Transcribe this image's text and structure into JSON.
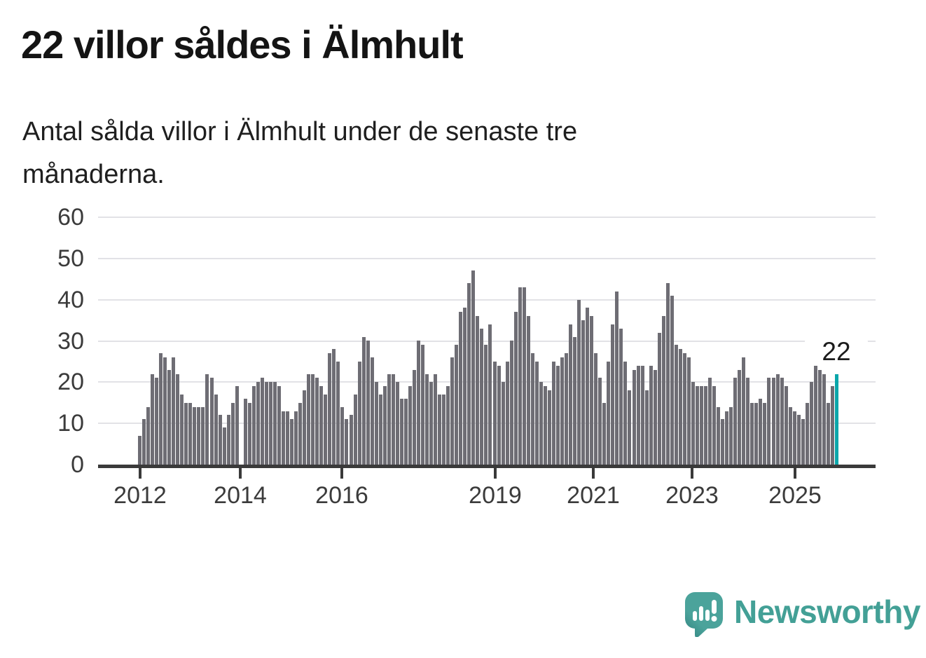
{
  "header": {
    "title": "22 villor såldes i Älmhult",
    "subtitle": "Antal sålda villor i Älmhult under de senaste tre månaderna.",
    "subtitle_lines": [
      "Antal sålda villor i Älmhult under de senaste tre",
      "månaderna."
    ]
  },
  "chart_data": {
    "type": "bar",
    "title": "22 villor såldes i Älmhult",
    "subtitle": "Antal sålda villor i Älmhult under de senaste tre månaderna.",
    "ylabel": "",
    "xlabel": "",
    "ylim": [
      0,
      60
    ],
    "y_ticks": [
      0,
      10,
      20,
      30,
      40,
      50,
      60
    ],
    "grid": true,
    "x_tick_labels": [
      "2012",
      "2014",
      "2016",
      "2019",
      "2021",
      "2023",
      "2025"
    ],
    "tick_month_indices": [
      0,
      24,
      48,
      84,
      108,
      132,
      156
    ],
    "start_month": "2012-01",
    "end_month": "2025-10",
    "frequency": "monthly (rolling 3-month totals)",
    "values": [
      7,
      11,
      14,
      22,
      21,
      27,
      26,
      23,
      26,
      22,
      17,
      15,
      15,
      14,
      14,
      14,
      22,
      21,
      17,
      12,
      9,
      12,
      15,
      19,
      0,
      16,
      15,
      19,
      20,
      21,
      20,
      20,
      20,
      19,
      13,
      13,
      11,
      13,
      15,
      18,
      22,
      22,
      21,
      19,
      17,
      27,
      28,
      25,
      14,
      11,
      12,
      17,
      25,
      31,
      30,
      26,
      20,
      17,
      19,
      22,
      22,
      20,
      16,
      16,
      19,
      23,
      30,
      29,
      22,
      20,
      22,
      17,
      17,
      19,
      26,
      29,
      37,
      38,
      44,
      47,
      36,
      33,
      29,
      34,
      25,
      24,
      20,
      25,
      30,
      37,
      43,
      43,
      36,
      27,
      25,
      20,
      19,
      18,
      25,
      24,
      26,
      27,
      34,
      31,
      40,
      35,
      38,
      36,
      27,
      21,
      15,
      25,
      34,
      42,
      33,
      25,
      18,
      23,
      24,
      24,
      18,
      24,
      23,
      32,
      36,
      44,
      41,
      29,
      28,
      27,
      26,
      20,
      19,
      19,
      19,
      21,
      19,
      14,
      11,
      13,
      14,
      21,
      23,
      26,
      21,
      15,
      15,
      16,
      15,
      21,
      21,
      22,
      21,
      19,
      14,
      13,
      12,
      11,
      15,
      20,
      26,
      23,
      22,
      15,
      19,
      22
    ],
    "highlight": {
      "index": 165,
      "value": 22,
      "label": "22",
      "color": "#0aa6aa"
    },
    "bar_color": "#6e6d74",
    "legend_position": "none"
  },
  "annotation": {
    "last_value_label": "22"
  },
  "branding": {
    "name": "Newsworthy",
    "icon": "newsworthy-speech-bubble-chart-icon",
    "color": "#43a096",
    "icon_color": "#4ba39b"
  },
  "colors": {
    "background": "#ffffff",
    "bar": "#6e6d74",
    "highlight": "#0aa6aa",
    "axis": "#3a3a3a",
    "gridline": "#e2e2e6",
    "text": "#1f1f1f"
  }
}
